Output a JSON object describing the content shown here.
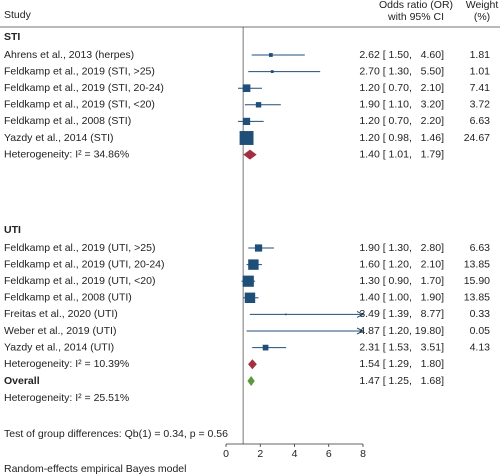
{
  "chart_data": {
    "type": "forest",
    "headers": {
      "study": "Study",
      "effect": [
        "Odds ratio (OR)",
        "with 95% CI"
      ],
      "weight": [
        "Weight",
        "(%)"
      ]
    },
    "box_color": "#1f4e79",
    "xlim": [
      0,
      8
    ],
    "xticks": [
      0,
      2,
      4,
      6,
      8
    ],
    "reference": 1,
    "groups": [
      {
        "name": "STI",
        "diamond_color": "#a3303f",
        "studies": [
          {
            "name": "Ahrens et al., 2013 (herpes)",
            "estimate": 2.62,
            "ci_lower": 1.5,
            "ci_upper": 4.6,
            "value_label": "2.62 [ 1.50,   4.60]",
            "weight": 1.81,
            "weight_label": "1.81"
          },
          {
            "name": "Feldkamp et al., 2019 (STI, >25)",
            "estimate": 2.7,
            "ci_lower": 1.3,
            "ci_upper": 5.5,
            "value_label": "2.70 [ 1.30,   5.50]",
            "weight": 1.01,
            "weight_label": "1.01"
          },
          {
            "name": "Feldkamp et al., 2019 (STI, 20-24)",
            "estimate": 1.2,
            "ci_lower": 0.7,
            "ci_upper": 2.1,
            "value_label": "1.20 [ 0.70,   2.10]",
            "weight": 7.41,
            "weight_label": "7.41"
          },
          {
            "name": "Feldkamp et al., 2019 (STI, <20)",
            "estimate": 1.9,
            "ci_lower": 1.1,
            "ci_upper": 3.2,
            "value_label": "1.90 [ 1.10,   3.20]",
            "weight": 3.72,
            "weight_label": "3.72"
          },
          {
            "name": "Feldkamp et al., 2008 (STI)",
            "estimate": 1.2,
            "ci_lower": 0.7,
            "ci_upper": 2.2,
            "value_label": "1.20 [ 0.70,   2.20]",
            "weight": 6.63,
            "weight_label": "6.63"
          },
          {
            "name": "Yazdy et al., 2014 (STI)",
            "estimate": 1.2,
            "ci_lower": 0.98,
            "ci_upper": 1.46,
            "value_label": "1.20 [ 0.98,   1.46]",
            "weight": 24.67,
            "weight_label": "24.67"
          }
        ],
        "pooled": {
          "name": "Heterogeneity: I² = 34.86%",
          "estimate": 1.4,
          "ci_lower": 1.01,
          "ci_upper": 1.79,
          "value_label": "1.40 [ 1.01,   1.79]"
        }
      },
      {
        "name": "UTI",
        "diamond_color": "#a3303f",
        "studies": [
          {
            "name": "Feldkamp et al., 2019 (UTI, >25)",
            "estimate": 1.9,
            "ci_lower": 1.3,
            "ci_upper": 2.8,
            "value_label": "1.90 [ 1.30,   2.80]",
            "weight": 6.63,
            "weight_label": "6.63"
          },
          {
            "name": "Feldkamp et al., 2019 (UTI, 20-24)",
            "estimate": 1.6,
            "ci_lower": 1.2,
            "ci_upper": 2.1,
            "value_label": "1.60 [ 1.20,   2.10]",
            "weight": 13.85,
            "weight_label": "13.85"
          },
          {
            "name": "Feldkamp et al., 2019 (UTI, <20)",
            "estimate": 1.3,
            "ci_lower": 0.9,
            "ci_upper": 1.7,
            "value_label": "1.30 [ 0.90,   1.70]",
            "weight": 15.9,
            "weight_label": "15.90"
          },
          {
            "name": "Feldkamp et al., 2008 (UTI)",
            "estimate": 1.4,
            "ci_lower": 1.0,
            "ci_upper": 1.9,
            "value_label": "1.40 [ 1.00,   1.90]",
            "weight": 13.85,
            "weight_label": "13.85"
          },
          {
            "name": "Freitas et al., 2020 (UTI)",
            "estimate": 3.49,
            "ci_lower": 1.39,
            "ci_upper": 8.77,
            "value_label": "3.49 [ 1.39,   8.77]",
            "weight": 0.33,
            "weight_label": "0.33"
          },
          {
            "name": "Weber et al., 2019 (UTI)",
            "estimate": 4.87,
            "ci_lower": 1.2,
            "ci_upper": 19.8,
            "value_label": "4.87 [ 1.20, 19.80]",
            "weight": 0.05,
            "weight_label": "0.05"
          },
          {
            "name": "Yazdy et al., 2014 (UTI)",
            "estimate": 2.31,
            "ci_lower": 1.53,
            "ci_upper": 3.51,
            "value_label": "2.31 [ 1.53,   3.51]",
            "weight": 4.13,
            "weight_label": "4.13"
          }
        ],
        "pooled": {
          "name": "Heterogeneity: I² = 10.39%",
          "estimate": 1.54,
          "ci_lower": 1.29,
          "ci_upper": 1.8,
          "value_label": "1.54 [ 1.29,   1.80]"
        }
      }
    ],
    "overall": {
      "name": "Overall",
      "diamond_color": "#5a9a3c",
      "estimate": 1.47,
      "ci_lower": 1.25,
      "ci_upper": 1.68,
      "value_label": "1.47 [ 1.25,   1.68]",
      "heterogeneity": "Heterogeneity: I² = 25.51%"
    },
    "test": "Test of group differences: Qb(1) = 0.34, p = 0.56",
    "footnote": "Random-effects empirical Bayes model"
  }
}
